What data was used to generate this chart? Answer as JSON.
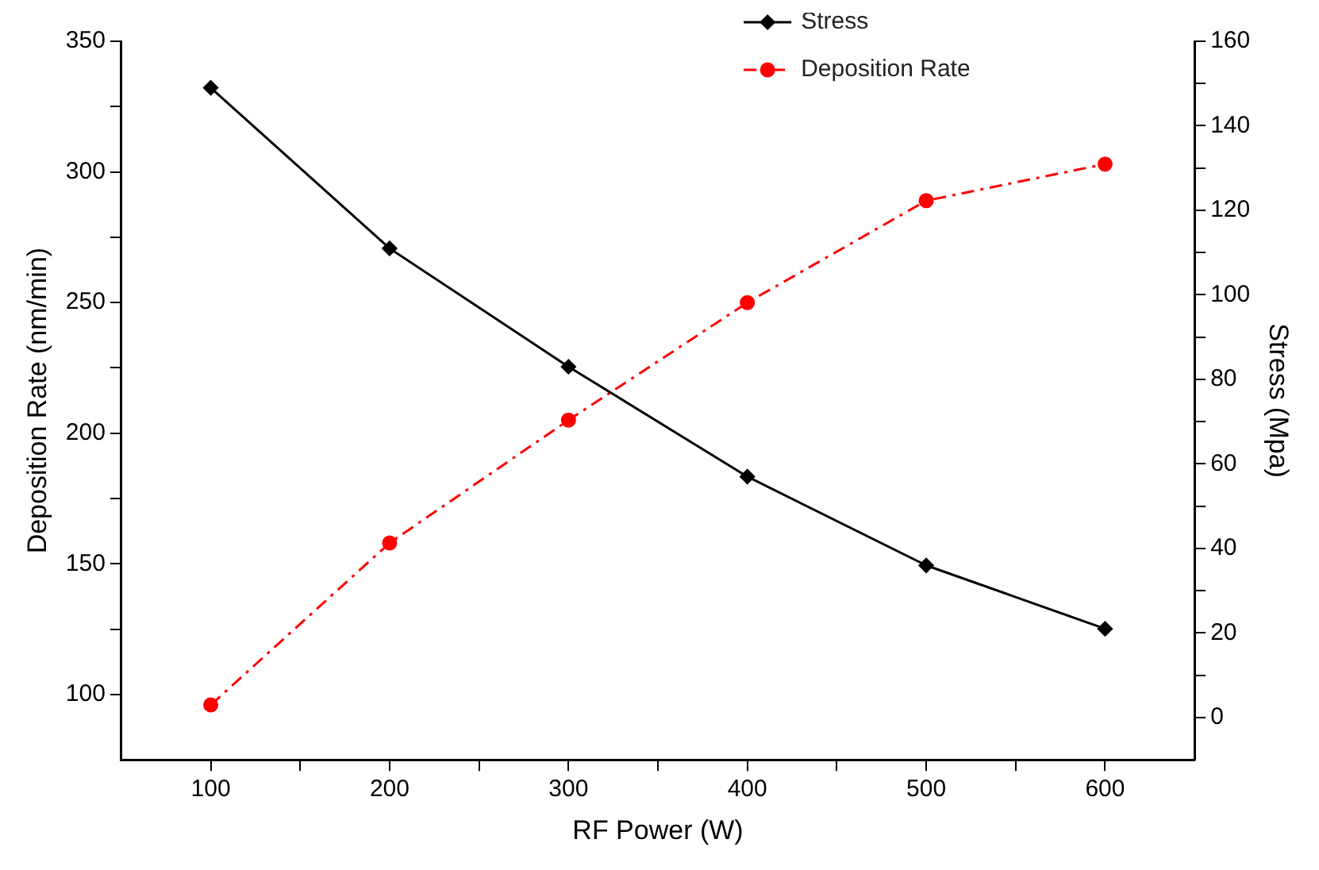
{
  "chart_data": {
    "type": "line",
    "xlabel": "RF Power (W)",
    "ylabel": "Deposition Rate (nm/min)",
    "y2label": "Stress (Mpa)",
    "x": [
      100,
      200,
      300,
      400,
      500,
      600
    ],
    "series": [
      {
        "name": "Stress",
        "color": "#000000",
        "axis": "y2",
        "marker": "diamond",
        "line_style": "solid",
        "values": [
          149,
          111,
          83,
          57,
          36,
          21
        ]
      },
      {
        "name": "Deposition Rate",
        "color": "#ff0000",
        "marker": "circle",
        "line_style": "dashed",
        "values": [
          96,
          158,
          205,
          250,
          289,
          303
        ]
      }
    ],
    "xlim": [
      50,
      650
    ],
    "xticks": [
      100,
      {
        "value": 150,
        "label": null
      },
      200,
      {
        "value": 250,
        "label": null
      },
      300,
      {
        "value": 350,
        "label": null
      },
      400,
      {
        "value": 450,
        "label": null
      },
      500,
      {
        "value": 550,
        "label": null
      },
      600
    ],
    "ylim": [
      75,
      350
    ],
    "yticks": [
      100,
      {
        "value": 125,
        "label": null
      },
      150,
      {
        "value": 175,
        "label": null
      },
      200,
      {
        "value": 225,
        "label": null
      },
      250,
      {
        "value": 275,
        "label": null
      },
      300,
      {
        "value": 325,
        "label": null
      },
      350
    ],
    "y2lim": [
      -10,
      160
    ],
    "y2ticks": [
      0,
      {
        "value": 10,
        "label": null
      },
      20,
      {
        "value": 30,
        "label": null
      },
      40,
      {
        "value": 50,
        "label": null
      },
      60,
      {
        "value": 70,
        "label": null
      },
      80,
      {
        "value": 90,
        "label": null
      },
      100,
      {
        "value": 110,
        "label": null
      },
      120,
      {
        "value": 130,
        "label": null
      },
      140,
      {
        "value": 150,
        "label": null
      },
      160
    ],
    "grid": false,
    "legend": "top"
  }
}
